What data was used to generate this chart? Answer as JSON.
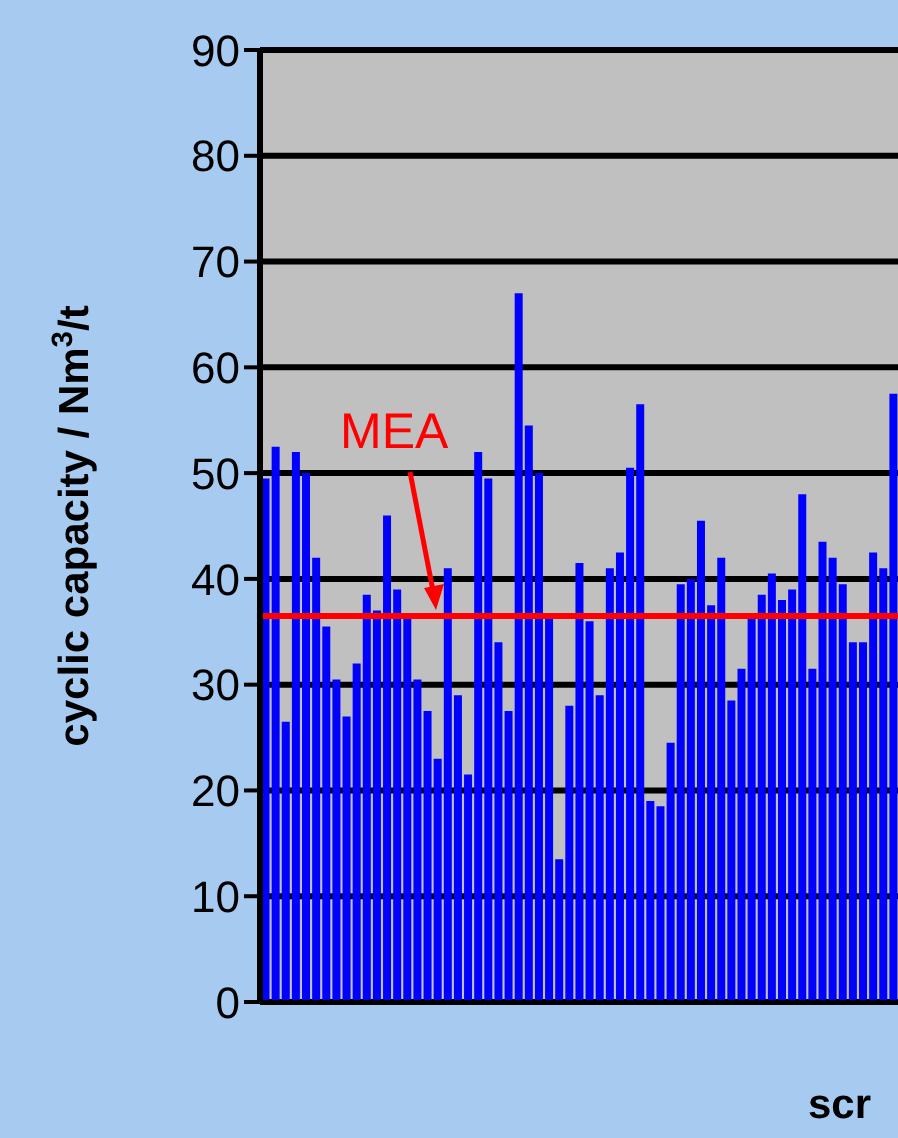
{
  "chart_data": {
    "type": "bar",
    "ylabel": "cyclic capacity / Nm$^{3}$/t",
    "xlabel": "scr",
    "categories": [
      null,
      null,
      null,
      null,
      null,
      null,
      null,
      null,
      null,
      null,
      null,
      null,
      null,
      null,
      null,
      null,
      null,
      null,
      null,
      null,
      null,
      null,
      null,
      null,
      null,
      null,
      null,
      null,
      null,
      null,
      null,
      null,
      null,
      null,
      null,
      null,
      null,
      null,
      null,
      null,
      null,
      null,
      null,
      null,
      null,
      null,
      null,
      null,
      null,
      null,
      null,
      null,
      null,
      null,
      null,
      null,
      null,
      null,
      null,
      null,
      null,
      null,
      null
    ],
    "values": [
      49.5,
      52.5,
      26.5,
      52,
      50,
      42,
      35.5,
      30.5,
      27,
      32,
      38.5,
      37,
      46,
      39,
      36.5,
      30.5,
      27.5,
      23,
      41,
      29,
      21.5,
      52,
      49.5,
      34,
      27.5,
      67,
      54.5,
      50,
      36.5,
      13.5,
      28,
      41.5,
      36,
      29,
      41,
      42.5,
      50.5,
      56.5,
      19,
      18.5,
      24.5,
      39.5,
      40,
      45.5,
      37.5,
      42,
      28.5,
      31.5,
      36.5,
      38.5,
      40.5,
      38,
      39,
      48,
      31.5,
      43.5,
      42,
      39.5,
      34,
      34,
      42.5,
      41,
      57.5
    ],
    "color": "#0000ff",
    "ylim": [
      0,
      90
    ],
    "yticks": [
      0,
      10,
      20,
      30,
      40,
      50,
      60,
      70,
      80,
      90
    ],
    "grid": "y",
    "ref_lines": [
      {
        "axis": "y",
        "value": 36.5,
        "label": "MEA",
        "color": "#ff0000"
      }
    ]
  }
}
